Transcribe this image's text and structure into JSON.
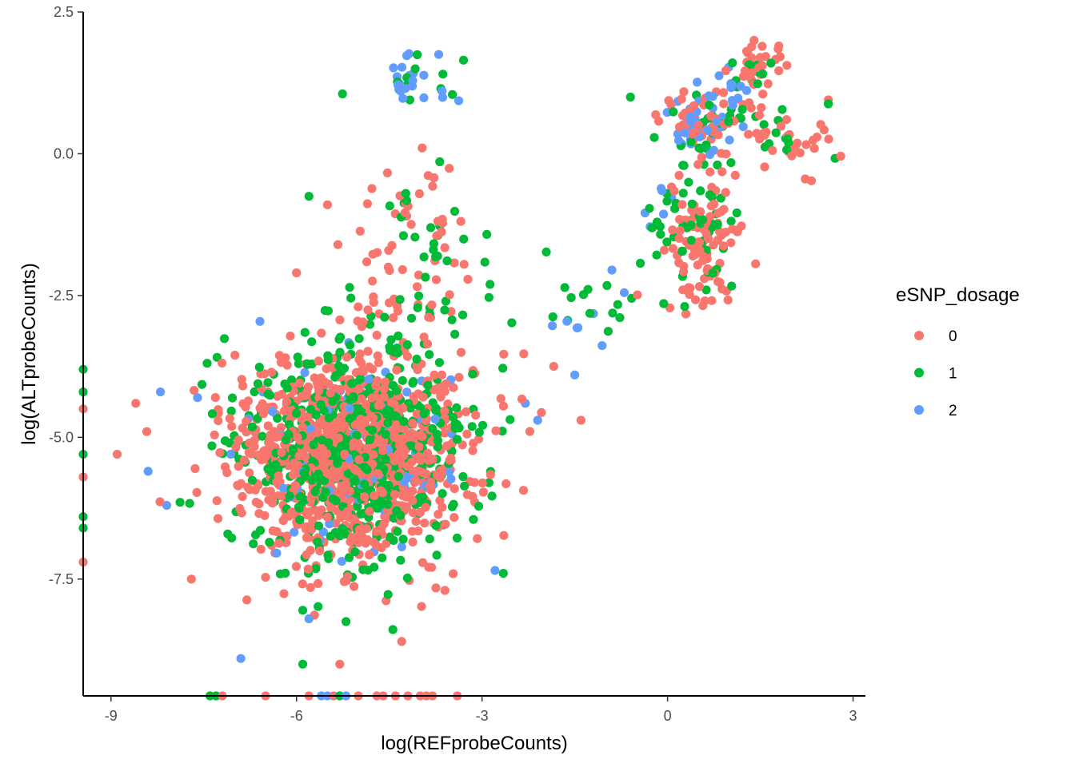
{
  "chart_data": {
    "type": "scatter",
    "xlabel": "log(REFprobeCounts)",
    "ylabel": "log(ALTprobeCounts)",
    "xlim": [
      -9.45,
      3.2
    ],
    "ylim": [
      -9.56,
      2.5
    ],
    "x_ticks": [
      -9,
      -6,
      -3,
      0,
      3
    ],
    "x_tick_labels": [
      "-9",
      "-6",
      "-3",
      "0",
      "3"
    ],
    "y_ticks": [
      2.5,
      0,
      -2.5,
      -5,
      -7.5
    ],
    "y_tick_labels": [
      "2.5",
      "0.0",
      "-2.5",
      "-5.0",
      "-7.5"
    ],
    "grid": false,
    "legend": {
      "title": "eSNP_dosage",
      "position": "right",
      "entries": [
        "0",
        "1",
        "2"
      ]
    },
    "series": [
      {
        "name": "0",
        "color": "#F8766D",
        "clusters": [
          {
            "cx": -5.1,
            "cy": -5.3,
            "sx": 0.95,
            "sy": 0.95,
            "n": 950
          },
          {
            "cx": -3.9,
            "cy": -1.6,
            "sx": 0.55,
            "sy": 0.85,
            "n": 50
          },
          {
            "cx": 0.55,
            "cy": -1.5,
            "sx": 0.3,
            "sy": 0.6,
            "n": 100
          },
          {
            "cx": 0.6,
            "cy": 0.6,
            "sx": 0.5,
            "sy": 0.3,
            "n": 45
          },
          {
            "cx": 1.5,
            "cy": 1.5,
            "sx": 0.2,
            "sy": 0.3,
            "n": 30
          },
          {
            "cx": 2.0,
            "cy": 0.2,
            "sx": 0.35,
            "sy": 0.3,
            "n": 28
          }
        ],
        "points": [
          {
            "x": -8.9,
            "y": -5.3
          },
          {
            "x": -8.6,
            "y": -4.4
          },
          {
            "x": -7.7,
            "y": -7.5
          },
          {
            "x": -5.3,
            "y": -9.0
          },
          {
            "x": -4.3,
            "y": -8.6
          },
          {
            "x": -6.0,
            "y": -2.1
          },
          {
            "x": -1.4,
            "y": -4.7
          },
          {
            "x": -1.84,
            "y": -3.75
          },
          {
            "x": -5.5,
            "y": -0.9
          },
          {
            "x": -3.6,
            "y": -7.7
          },
          {
            "x": 2.6,
            "y": 0.95
          },
          {
            "x": 1.4,
            "y": 2.0
          },
          {
            "x": -9.45,
            "y": -7.2
          },
          {
            "x": -9.45,
            "y": -5.7
          },
          {
            "x": -9.45,
            "y": -4.5
          }
        ]
      },
      {
        "name": "1",
        "color": "#00BA38",
        "clusters": [
          {
            "cx": -5.0,
            "cy": -5.2,
            "sx": 0.9,
            "sy": 0.95,
            "n": 600
          },
          {
            "cx": -3.8,
            "cy": -1.8,
            "sx": 0.6,
            "sy": 0.9,
            "n": 40
          },
          {
            "cx": -1.2,
            "cy": -2.6,
            "sx": 0.4,
            "sy": 0.25,
            "n": 15
          },
          {
            "cx": 0.5,
            "cy": -1.3,
            "sx": 0.35,
            "sy": 0.7,
            "n": 60
          },
          {
            "cx": 0.7,
            "cy": 0.5,
            "sx": 0.45,
            "sy": 0.3,
            "n": 25
          },
          {
            "cx": 1.4,
            "cy": 1.4,
            "sx": 0.2,
            "sy": 0.3,
            "n": 12
          },
          {
            "cx": 2.0,
            "cy": 0.3,
            "sx": 0.3,
            "sy": 0.25,
            "n": 8
          },
          {
            "cx": -3.9,
            "cy": 1.3,
            "sx": 0.35,
            "sy": 0.25,
            "n": 10
          }
        ],
        "points": [
          {
            "x": -5.2,
            "y": -8.25
          },
          {
            "x": -5.9,
            "y": -9.0
          },
          {
            "x": -5.9,
            "y": -8.05
          },
          {
            "x": -5.8,
            "y": -0.75
          },
          {
            "x": 2.6,
            "y": 0.88
          },
          {
            "x": -9.45,
            "y": -3.8
          },
          {
            "x": -9.45,
            "y": -4.2
          },
          {
            "x": -9.45,
            "y": -5.3
          },
          {
            "x": -9.45,
            "y": -6.4
          },
          {
            "x": -9.45,
            "y": -6.6
          },
          {
            "x": -0.6,
            "y": 1.0
          },
          {
            "x": -3.3,
            "y": 1.65
          }
        ]
      },
      {
        "name": "2",
        "color": "#619CFF",
        "clusters": [
          {
            "cx": -4.9,
            "cy": -5.3,
            "sx": 0.9,
            "sy": 0.9,
            "n": 90
          },
          {
            "cx": -4.0,
            "cy": 1.3,
            "sx": 0.35,
            "sy": 0.25,
            "n": 22
          },
          {
            "cx": 0.5,
            "cy": 0.5,
            "sx": 0.3,
            "sy": 0.25,
            "n": 35
          },
          {
            "cx": 1.1,
            "cy": 1.1,
            "sx": 0.2,
            "sy": 0.3,
            "n": 12
          },
          {
            "cx": -1.6,
            "cy": -3.0,
            "sx": 0.4,
            "sy": 0.3,
            "n": 6
          },
          {
            "cx": -0.3,
            "cy": -0.8,
            "sx": 0.3,
            "sy": 0.3,
            "n": 6
          }
        ],
        "points": [
          {
            "x": -8.2,
            "y": -4.2
          },
          {
            "x": -8.4,
            "y": -5.6
          },
          {
            "x": -8.1,
            "y": -6.2
          },
          {
            "x": -7.6,
            "y": -4.3
          },
          {
            "x": -6.9,
            "y": -8.9
          },
          {
            "x": -5.8,
            "y": -8.2
          },
          {
            "x": -2.1,
            "y": -4.7
          },
          {
            "x": -2.3,
            "y": -4.4
          },
          {
            "x": -3.7,
            "y": 1.75
          },
          {
            "x": -1.5,
            "y": -3.9
          },
          {
            "x": -0.7,
            "y": -2.45
          },
          {
            "x": -0.9,
            "y": -2.05
          }
        ]
      }
    ],
    "bottom_strip_x": [
      -7.4,
      -7.3,
      -7.2,
      -6.5,
      -5.8,
      -5.6,
      -5.5,
      -5.4,
      -5.3,
      -5.2,
      -5.0,
      -4.7,
      -4.6,
      -4.4,
      -4.2,
      -4.0,
      -3.9,
      -3.8,
      -3.4
    ],
    "bottom_strip_series": [
      1,
      1,
      0,
      0,
      0,
      2,
      2,
      0,
      1,
      2,
      0,
      0,
      0,
      0,
      0,
      0,
      0,
      0,
      0
    ]
  }
}
